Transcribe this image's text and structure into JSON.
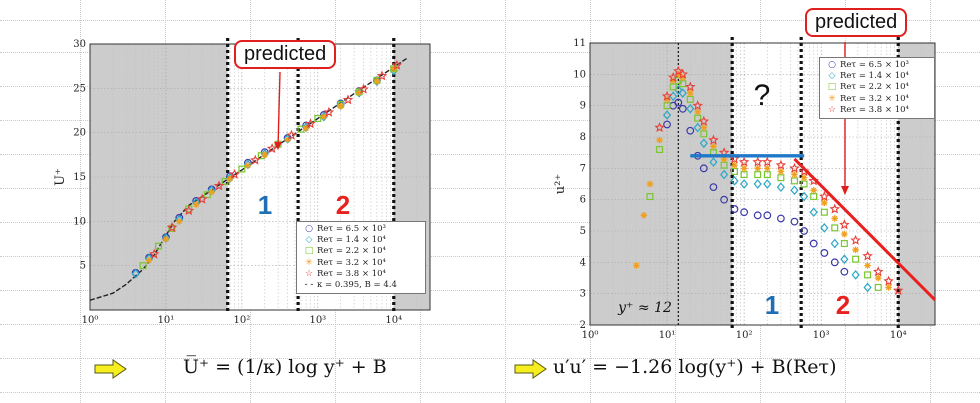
{
  "left_panel": {
    "callout": "predicted",
    "region_labels": [
      "1",
      "2"
    ],
    "equation": "U̅⁺ = (1/κ) log y⁺ + B",
    "legend": [
      {
        "label": "Reτ = 6.5 × 10³",
        "marker": "circle-icon",
        "color": "#3a3aa8"
      },
      {
        "label": "Reτ = 1.4 × 10⁴",
        "marker": "diamond-icon",
        "color": "#2aa7c6"
      },
      {
        "label": "Reτ = 2.2 × 10⁴",
        "marker": "square-icon",
        "color": "#7ac62e"
      },
      {
        "label": "Reτ = 3.2 × 10⁴",
        "marker": "asterisk-icon",
        "color": "#f0a020"
      },
      {
        "label": "Reτ = 3.8 × 10⁴",
        "marker": "star-icon",
        "color": "#e8403a"
      },
      {
        "label": "κ = 0.395, B = 4.4",
        "marker": "dashed-line-icon",
        "color": "#222222"
      }
    ]
  },
  "right_panel": {
    "callout": "predicted",
    "question_mark": "?",
    "region_labels": [
      "1",
      "2"
    ],
    "yplus_annotation": "y⁺ ≈ 12",
    "equation": "u′u′ = −1.26 log(y⁺) + B(Reτ)",
    "legend": [
      {
        "label": "Reτ = 6.5 × 10³",
        "marker": "circle-icon",
        "color": "#3a3aa8"
      },
      {
        "label": "Reτ = 1.4 × 10⁴",
        "marker": "diamond-icon",
        "color": "#2aa7c6"
      },
      {
        "label": "Reτ = 2.2 × 10⁴",
        "marker": "square-icon",
        "color": "#7ac62e"
      },
      {
        "label": "Reτ = 3.2 × 10⁴",
        "marker": "asterisk-icon",
        "color": "#f0a020"
      },
      {
        "label": "Reτ = 3.8 × 10⁴",
        "marker": "star-icon",
        "color": "#e8403a"
      }
    ]
  },
  "chart_data": [
    {
      "type": "scatter",
      "title": "",
      "xlabel": "",
      "ylabel": "U⁺",
      "xscale": "log",
      "xlim": [
        1,
        30000
      ],
      "ylim": [
        0,
        30
      ],
      "xticks": [
        "10⁰",
        "10¹",
        "10²",
        "10³",
        "10⁴"
      ],
      "yticks": [
        "5",
        "10",
        "15",
        "20",
        "25",
        "30"
      ],
      "grid": true,
      "legend_position": "bottom-right",
      "shaded_regions": [
        [
          1,
          65
        ],
        [
          10000,
          30000
        ]
      ],
      "vertical_dotted_lines": [
        65,
        550,
        10000
      ],
      "model_curve": [
        [
          1,
          1.1
        ],
        [
          2,
          1.9
        ],
        [
          3,
          2.9
        ],
        [
          5,
          4.6
        ],
        [
          7,
          6.2
        ],
        [
          10,
          8.4
        ],
        [
          13,
          10.0
        ],
        [
          20,
          11.8
        ],
        [
          30,
          12.8
        ],
        [
          50,
          14.1
        ],
        [
          100,
          15.8
        ],
        [
          300,
          18.6
        ],
        [
          1000,
          21.6
        ],
        [
          3000,
          24.4
        ],
        [
          10000,
          27.4
        ],
        [
          15000,
          28.4
        ]
      ],
      "series": [
        {
          "name": "Reτ = 6.5 × 10³",
          "marker": "circle",
          "color": "#3a3aa8",
          "x": [
            4,
            6,
            10,
            15,
            25,
            40,
            70,
            120,
            200,
            400,
            700,
            1200,
            2000,
            3500,
            6000
          ],
          "y": [
            4.2,
            5.9,
            8.2,
            10.4,
            12.3,
            13.6,
            15.1,
            16.6,
            17.8,
            19.4,
            20.8,
            22.0,
            23.3,
            24.7,
            25.9
          ]
        },
        {
          "name": "Reτ = 1.4 × 10⁴",
          "marker": "diamond",
          "color": "#2aa7c6",
          "x": [
            4,
            6,
            10,
            15,
            25,
            40,
            70,
            120,
            200,
            400,
            700,
            1200,
            2000,
            3500,
            6000,
            10000
          ],
          "y": [
            4.1,
            5.8,
            8.1,
            10.2,
            12.1,
            13.5,
            14.9,
            16.4,
            17.6,
            19.3,
            20.6,
            21.8,
            23.1,
            24.5,
            25.8,
            27.0
          ]
        },
        {
          "name": "Reτ = 2.2 × 10⁴",
          "marker": "square",
          "color": "#7ac62e",
          "x": [
            5,
            8,
            12,
            20,
            35,
            60,
            100,
            180,
            300,
            600,
            1000,
            2000,
            3500,
            6000,
            10000
          ],
          "y": [
            5.0,
            7.2,
            9.2,
            11.4,
            13.0,
            14.5,
            15.9,
            17.4,
            18.7,
            20.4,
            21.6,
            23.2,
            24.6,
            25.9,
            27.2
          ]
        },
        {
          "name": "Reτ = 3.2 × 10⁴",
          "marker": "asterisk",
          "color": "#f0a020",
          "x": [
            6,
            10,
            15,
            25,
            40,
            70,
            120,
            200,
            400,
            700,
            1200,
            2000,
            3500,
            6000,
            10000
          ],
          "y": [
            5.6,
            8.0,
            10.0,
            11.9,
            13.3,
            14.8,
            16.3,
            17.5,
            19.2,
            20.5,
            21.8,
            23.0,
            24.5,
            25.8,
            27.2
          ]
        },
        {
          "name": "Reτ = 3.8 × 10⁴",
          "marker": "star",
          "color": "#e8403a",
          "x": [
            7,
            12,
            20,
            30,
            50,
            80,
            150,
            250,
            450,
            800,
            1400,
            2500,
            4000,
            7000,
            11000
          ],
          "y": [
            6.3,
            9.3,
            11.2,
            12.5,
            14.0,
            15.3,
            16.9,
            18.2,
            19.7,
            21.0,
            22.3,
            23.7,
            24.9,
            26.4,
            27.6
          ]
        }
      ]
    },
    {
      "type": "scatter",
      "title": "",
      "xlabel": "",
      "ylabel": "u²⁺",
      "xscale": "log",
      "xlim": [
        1,
        30000
      ],
      "ylim": [
        2,
        11
      ],
      "xticks": [
        "10⁰",
        "10¹",
        "10²",
        "10³",
        "10⁴"
      ],
      "yticks": [
        "2",
        "3",
        "4",
        "5",
        "6",
        "7",
        "8",
        "9",
        "10",
        "11"
      ],
      "grid": true,
      "legend_position": "top-right",
      "shaded_regions": [
        [
          1,
          70
        ],
        [
          10000,
          30000
        ]
      ],
      "vertical_dotted_lines": [
        14,
        70,
        550,
        10000
      ],
      "plateau_line": {
        "x": [
          20,
          600
        ],
        "y": 7.4
      },
      "predicted_line": {
        "x": [
          450,
          30000
        ],
        "y": [
          7.3,
          2.8
        ]
      },
      "series": [
        {
          "name": "Reτ = 6.5 × 10³",
          "marker": "circle",
          "color": "#3a3aa8",
          "x": [
            10,
            12,
            14,
            16,
            20,
            25,
            30,
            40,
            55,
            75,
            100,
            150,
            200,
            300,
            450,
            600,
            800,
            1100,
            1500,
            2000
          ],
          "y": [
            8.4,
            9.0,
            9.1,
            8.9,
            8.2,
            7.4,
            7.0,
            6.4,
            6.0,
            5.7,
            5.6,
            5.5,
            5.5,
            5.4,
            5.3,
            5.0,
            4.6,
            4.3,
            4.0,
            3.7
          ]
        },
        {
          "name": "Reτ = 1.4 × 10⁴",
          "marker": "diamond",
          "color": "#2aa7c6",
          "x": [
            10,
            12,
            14,
            16,
            20,
            25,
            30,
            40,
            55,
            75,
            100,
            150,
            200,
            300,
            450,
            600,
            800,
            1100,
            1500,
            2000,
            2800,
            4000
          ],
          "y": [
            8.7,
            9.3,
            9.5,
            9.4,
            8.9,
            8.3,
            7.8,
            7.2,
            6.8,
            6.6,
            6.5,
            6.5,
            6.5,
            6.4,
            6.3,
            6.1,
            5.6,
            5.1,
            4.6,
            4.1,
            3.6,
            3.2
          ]
        },
        {
          "name": "Reτ = 2.2 × 10⁴",
          "marker": "square",
          "color": "#7ac62e",
          "x": [
            6,
            8,
            10,
            12,
            14,
            16,
            20,
            25,
            30,
            40,
            55,
            75,
            100,
            150,
            200,
            300,
            450,
            600,
            800,
            1100,
            1500,
            2000,
            2800,
            4000,
            5500
          ],
          "y": [
            6.1,
            7.6,
            9.0,
            9.6,
            9.8,
            9.7,
            9.2,
            8.6,
            8.1,
            7.5,
            7.1,
            6.9,
            6.8,
            6.8,
            6.8,
            6.7,
            6.6,
            6.5,
            6.1,
            5.6,
            5.1,
            4.6,
            4.1,
            3.6,
            3.2
          ]
        },
        {
          "name": "Reτ = 3.2 × 10⁴",
          "marker": "asterisk",
          "color": "#f0a020",
          "x": [
            4,
            5,
            6,
            8,
            10,
            12,
            14,
            16,
            20,
            25,
            30,
            40,
            55,
            75,
            100,
            150,
            200,
            300,
            450,
            600,
            800,
            1100,
            1500,
            2000,
            2800,
            4000,
            5500,
            7500
          ],
          "y": [
            3.9,
            5.5,
            6.5,
            7.9,
            9.2,
            9.8,
            10.0,
            9.9,
            9.4,
            8.8,
            8.3,
            7.7,
            7.3,
            7.1,
            7.0,
            7.0,
            7.0,
            6.9,
            6.8,
            6.7,
            6.3,
            5.9,
            5.4,
            4.9,
            4.4,
            3.9,
            3.5,
            3.2
          ]
        },
        {
          "name": "Reτ = 3.8 × 10⁴",
          "marker": "star",
          "color": "#e8403a",
          "x": [
            8,
            10,
            12,
            14,
            16,
            20,
            25,
            30,
            40,
            55,
            75,
            100,
            150,
            200,
            300,
            450,
            600,
            800,
            1100,
            1500,
            2000,
            2800,
            4000,
            5500,
            7500,
            10000
          ],
          "y": [
            8.3,
            9.3,
            9.9,
            10.1,
            10.0,
            9.6,
            9.0,
            8.5,
            7.9,
            7.5,
            7.3,
            7.2,
            7.2,
            7.2,
            7.1,
            7.0,
            6.9,
            6.6,
            6.1,
            5.7,
            5.2,
            4.7,
            4.2,
            3.7,
            3.4,
            3.1
          ]
        }
      ]
    }
  ]
}
